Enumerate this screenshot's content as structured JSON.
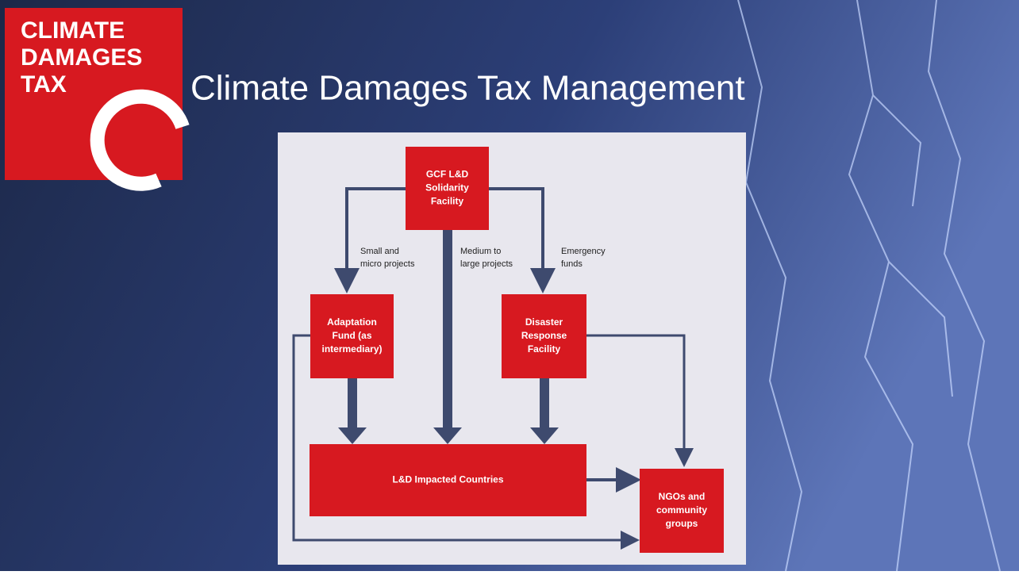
{
  "logo": {
    "lines": [
      "CLIMATE",
      "DAMAGES",
      "TAX"
    ]
  },
  "title": "Climate Damages Tax Management",
  "nodes": [
    {
      "label": [
        "GCF L&D",
        "Solidarity",
        "Facility"
      ]
    },
    {
      "label": [
        "Adaptation",
        "Fund (as",
        "intermediary)"
      ]
    },
    {
      "label": [
        "Disaster",
        "Response",
        "Facility"
      ]
    },
    {
      "label": [
        "L&D Impacted Countries"
      ]
    },
    {
      "label": [
        "NGOs and",
        "community",
        "groups"
      ]
    }
  ],
  "edge_labels": [
    [
      "Small and",
      "micro projects"
    ],
    [
      "Medium to",
      "large projects"
    ],
    [
      "Emergency",
      "funds"
    ]
  ]
}
